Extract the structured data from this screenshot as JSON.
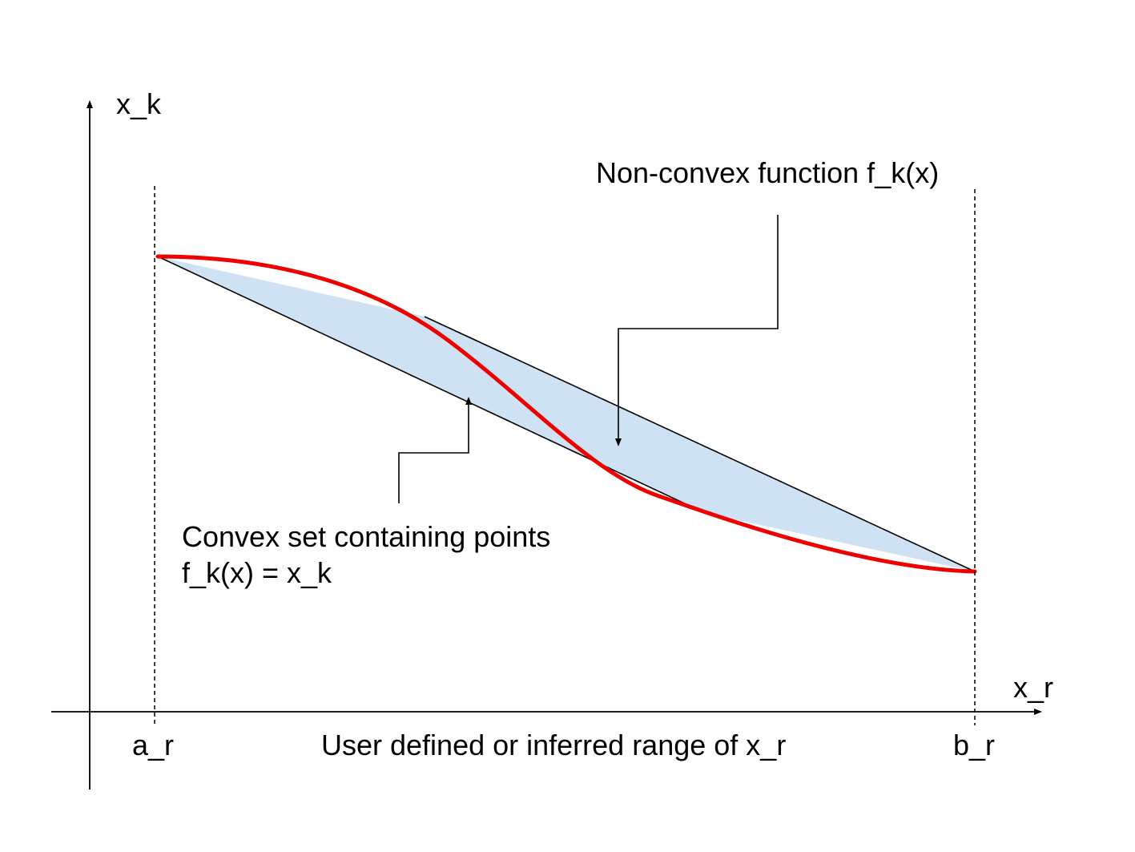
{
  "colors": {
    "curve": "#ee0000",
    "hull_fill": "#cfe2f3",
    "ink": "#000000",
    "background": "#ffffff"
  },
  "axes": {
    "y_label": "x_k",
    "x_label": "x_r"
  },
  "range": {
    "left_label": "a_r",
    "right_label": "b_r",
    "caption": "User defined or inferred range of x_r"
  },
  "annotations": {
    "function_label": "Non-convex function f_k(x)",
    "convex_set_line1": "Convex set containing points",
    "convex_set_line2": "f_k(x) = x_k"
  }
}
